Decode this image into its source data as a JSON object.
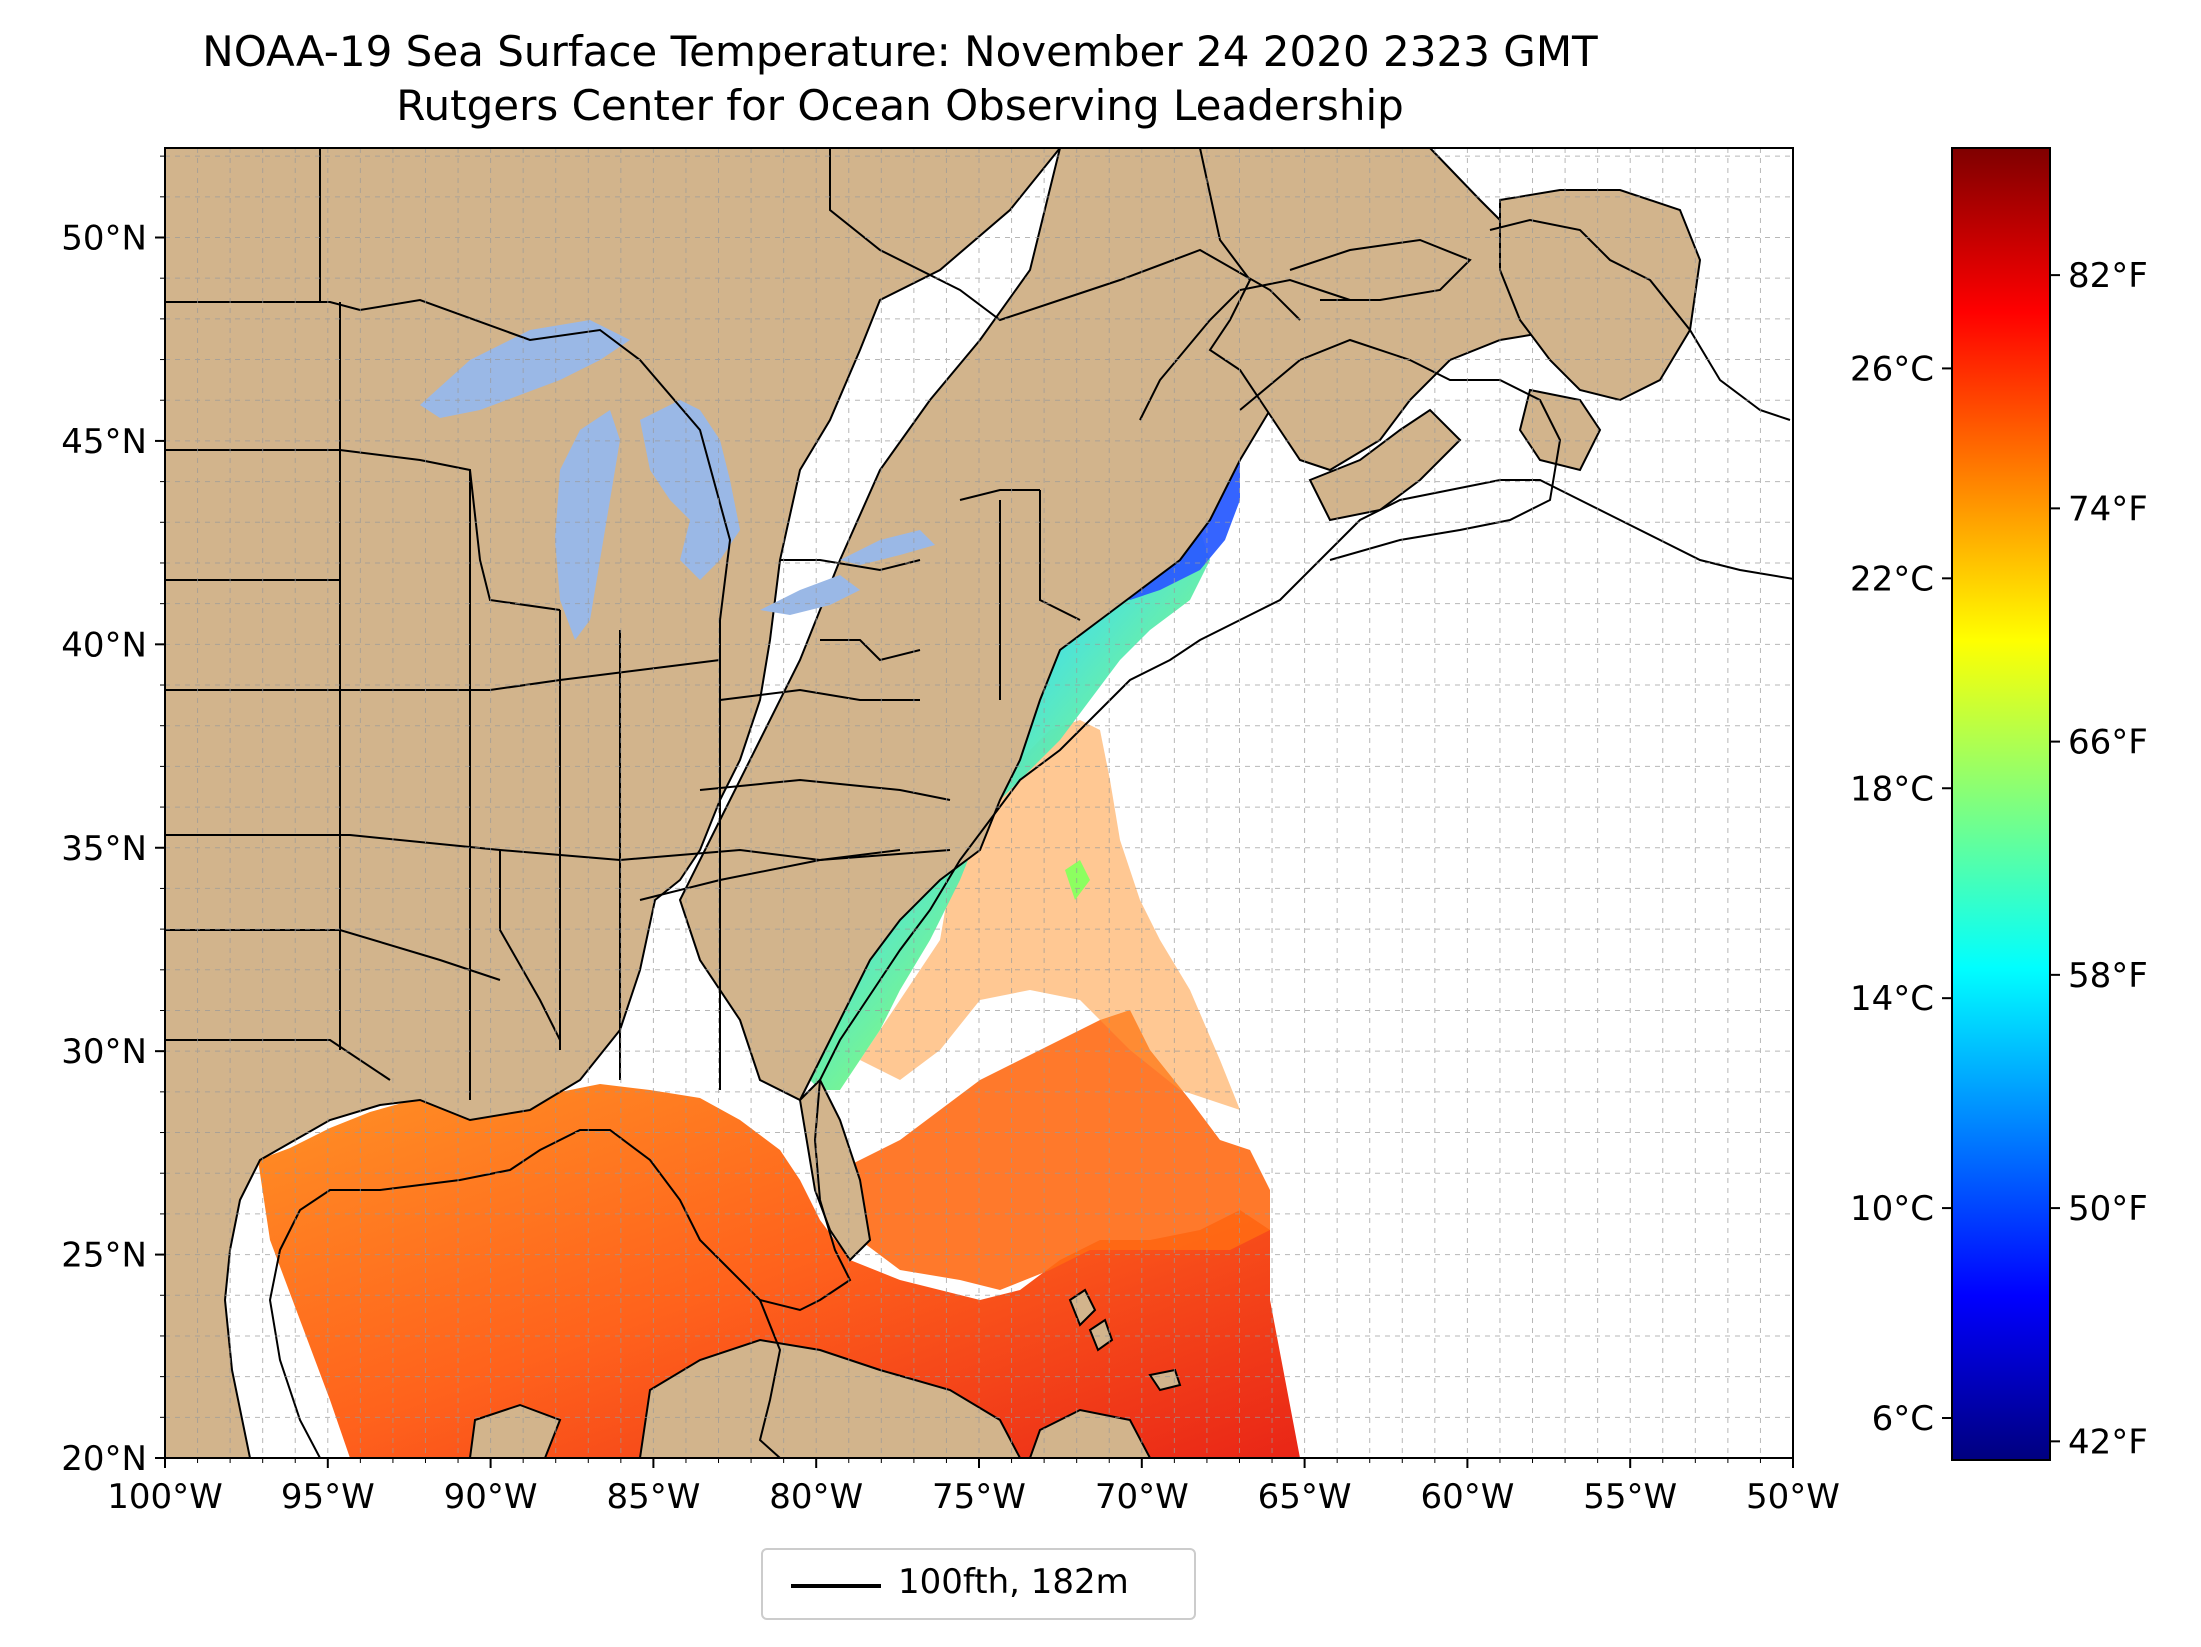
{
  "title_line1": "NOAA-19 Sea Surface Temperature: November 24 2020 2323 GMT",
  "title_line2": "Rutgers Center for Ocean Observing Leadership",
  "map": {
    "lon_range": [
      -100,
      -50
    ],
    "lat_range": [
      20,
      52.2
    ],
    "lon_ticks": [
      {
        "v": -100,
        "label": "100°W"
      },
      {
        "v": -95,
        "label": "95°W"
      },
      {
        "v": -90,
        "label": "90°W"
      },
      {
        "v": -85,
        "label": "85°W"
      },
      {
        "v": -80,
        "label": "80°W"
      },
      {
        "v": -75,
        "label": "75°W"
      },
      {
        "v": -70,
        "label": "70°W"
      },
      {
        "v": -65,
        "label": "65°W"
      },
      {
        "v": -60,
        "label": "60°W"
      },
      {
        "v": -55,
        "label": "55°W"
      },
      {
        "v": -50,
        "label": "50°W"
      }
    ],
    "lat_ticks": [
      {
        "v": 20,
        "label": "20°N"
      },
      {
        "v": 25,
        "label": "25°N"
      },
      {
        "v": 30,
        "label": "30°N"
      },
      {
        "v": 35,
        "label": "35°N"
      },
      {
        "v": 40,
        "label": "40°N"
      },
      {
        "v": 45,
        "label": "45°N"
      },
      {
        "v": 50,
        "label": "50°N"
      }
    ],
    "gridlines": true,
    "land_color": "#d2b48c",
    "lake_color": "#9ab8e6"
  },
  "colorbar": {
    "colormap": "jet",
    "celsius_range": [
      5.2,
      30.2
    ],
    "celsius_ticks": [
      {
        "v": 6,
        "label": "6°C"
      },
      {
        "v": 10,
        "label": "10°C"
      },
      {
        "v": 14,
        "label": "14°C"
      },
      {
        "v": 18,
        "label": "18°C"
      },
      {
        "v": 22,
        "label": "22°C"
      },
      {
        "v": 26,
        "label": "26°C"
      }
    ],
    "fahrenheit_ticks": [
      {
        "v": 42,
        "label": "42°F"
      },
      {
        "v": 50,
        "label": "50°F"
      },
      {
        "v": 58,
        "label": "58°F"
      },
      {
        "v": 66,
        "label": "66°F"
      },
      {
        "v": 74,
        "label": "74°F"
      },
      {
        "v": 82,
        "label": "82°F"
      }
    ]
  },
  "legend": {
    "label": "100fth, 182m",
    "placement": "bottom-center"
  }
}
